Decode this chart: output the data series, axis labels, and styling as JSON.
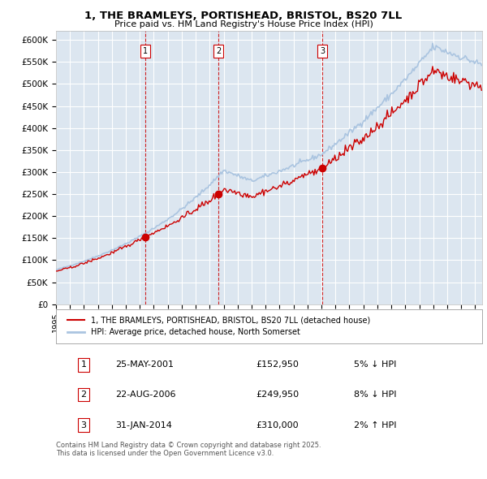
{
  "title": "1, THE BRAMLEYS, PORTISHEAD, BRISTOL, BS20 7LL",
  "subtitle": "Price paid vs. HM Land Registry's House Price Index (HPI)",
  "ylabel_ticks": [
    "£0",
    "£50K",
    "£100K",
    "£150K",
    "£200K",
    "£250K",
    "£300K",
    "£350K",
    "£400K",
    "£450K",
    "£500K",
    "£550K",
    "£600K"
  ],
  "ylim": [
    0,
    620000
  ],
  "ytick_vals": [
    0,
    50000,
    100000,
    150000,
    200000,
    250000,
    300000,
    350000,
    400000,
    450000,
    500000,
    550000,
    600000
  ],
  "plot_bg_color": "#dce6f0",
  "grid_color": "#ffffff",
  "hpi_color": "#aac4e0",
  "price_color": "#cc0000",
  "sale_labels": [
    "1",
    "2",
    "3"
  ],
  "sale_times": [
    2001.375,
    2006.625,
    2014.083
  ],
  "sale_prices": [
    152950,
    249950,
    310000
  ],
  "legend_label_price": "1, THE BRAMLEYS, PORTISHEAD, BRISTOL, BS20 7LL (detached house)",
  "legend_label_hpi": "HPI: Average price, detached house, North Somerset",
  "table_rows": [
    {
      "num": "1",
      "date": "25-MAY-2001",
      "price": "£152,950",
      "change": "5% ↓ HPI"
    },
    {
      "num": "2",
      "date": "22-AUG-2006",
      "price": "£249,950",
      "change": "8% ↓ HPI"
    },
    {
      "num": "3",
      "date": "31-JAN-2014",
      "price": "£310,000",
      "change": "2% ↑ HPI"
    }
  ],
  "footer": "Contains HM Land Registry data © Crown copyright and database right 2025.\nThis data is licensed under the Open Government Licence v3.0."
}
